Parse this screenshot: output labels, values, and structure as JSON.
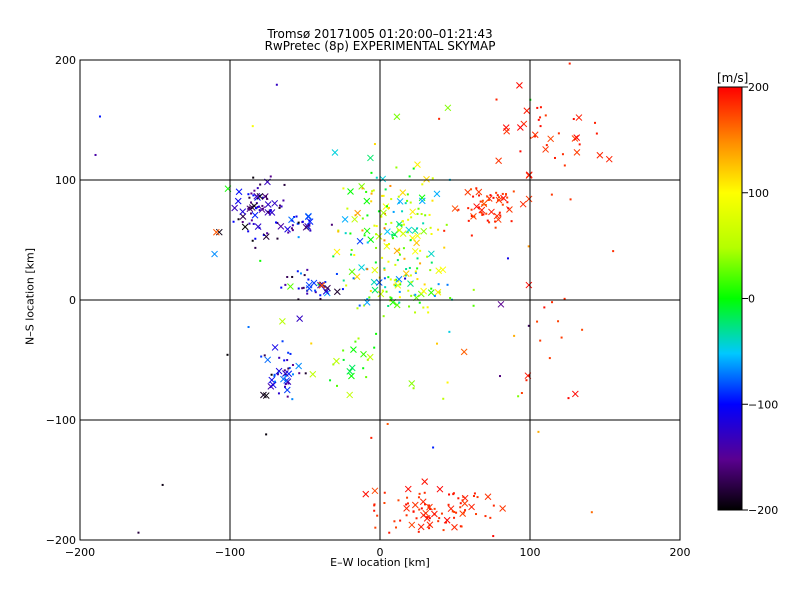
{
  "title_line1": "Tromsø 20171005 01:20:00–01:21:43",
  "title_line2": "RwPretec (8p) EXPERIMENTAL SKYMAP",
  "chart_data": {
    "type": "scatter",
    "xlabel": "E–W location [km]",
    "ylabel": "N–S location [km]",
    "xlim": [
      -200,
      200
    ],
    "ylim": [
      -200,
      200
    ],
    "xticks": [
      "−200",
      "−100",
      "0",
      "100",
      "200"
    ],
    "yticks": [
      "−200",
      "−100",
      "0",
      "100",
      "200"
    ],
    "grid": true,
    "colorbar": {
      "unit": "[m/s]",
      "range": [
        -200,
        200
      ],
      "ticks": [
        "−200",
        "−100",
        "0",
        "100",
        "200"
      ]
    },
    "point_clusters": [
      {
        "cx": 8,
        "cy": 60,
        "sx": 18,
        "sy": 28,
        "n": 150,
        "vmin": -60,
        "vmax": 160
      },
      {
        "cx": -80,
        "cy": 75,
        "sx": 8,
        "sy": 12,
        "n": 70,
        "vmin": -200,
        "vmax": -90
      },
      {
        "cx": -55,
        "cy": 65,
        "sx": 7,
        "sy": 6,
        "n": 30,
        "vmin": -200,
        "vmax": -60
      },
      {
        "cx": 70,
        "cy": 78,
        "sx": 12,
        "sy": 8,
        "n": 60,
        "vmin": 170,
        "vmax": 200
      },
      {
        "cx": 10,
        "cy": 12,
        "sx": 22,
        "sy": 10,
        "n": 70,
        "vmin": -80,
        "vmax": 120
      },
      {
        "cx": -45,
        "cy": 10,
        "sx": 10,
        "sy": 8,
        "n": 30,
        "vmin": -200,
        "vmax": -80
      },
      {
        "cx": -65,
        "cy": -60,
        "sx": 9,
        "sy": 12,
        "n": 45,
        "vmin": -200,
        "vmax": -60
      },
      {
        "cx": -20,
        "cy": -50,
        "sx": 10,
        "sy": 10,
        "n": 20,
        "vmin": -20,
        "vmax": 60
      },
      {
        "cx": 35,
        "cy": -175,
        "sx": 20,
        "sy": 10,
        "n": 90,
        "vmin": 175,
        "vmax": 200
      },
      {
        "cx": 110,
        "cy": 140,
        "sx": 20,
        "sy": 25,
        "n": 40,
        "vmin": 175,
        "vmax": 200
      },
      {
        "cx": 110,
        "cy": -40,
        "sx": 12,
        "sy": 30,
        "n": 15,
        "vmin": 175,
        "vmax": 200
      },
      {
        "cx": 0,
        "cy": 0,
        "sx": 100,
        "sy": 100,
        "n": 60,
        "vmin": -200,
        "vmax": 200
      }
    ],
    "markers": "small crosses (x) and dots"
  }
}
